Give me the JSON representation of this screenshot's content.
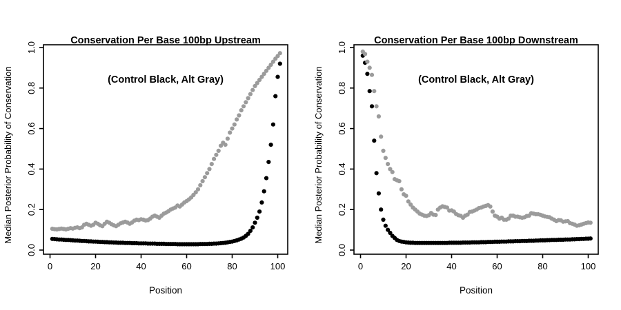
{
  "page": {
    "background": "#ffffff",
    "text_color": "#000000"
  },
  "chart_data": [
    {
      "type": "scatter",
      "panel": "upstream",
      "title_line1": "Conservation Per Base 100bp Upstream",
      "title_line2": "(Control Black, Alt Gray)",
      "xlabel": "Position",
      "ylabel": "Median Posterior Probability of Conservation",
      "xlim": [
        0,
        100
      ],
      "ylim": [
        0.0,
        1.0
      ],
      "x_ticks": [
        0,
        20,
        40,
        60,
        80,
        100
      ],
      "y_ticks": [
        "0.0",
        "0.2",
        "0.4",
        "0.6",
        "0.8",
        "1.0"
      ],
      "grid": false,
      "legend": "encoded in subtitle: Control = black, Alt = gray",
      "x_positions": {
        "start": 1,
        "step": 1,
        "count": 101
      },
      "series": [
        {
          "name": "Control",
          "color": "#000000",
          "values": [
            0.055,
            0.054,
            0.053,
            0.052,
            0.052,
            0.051,
            0.05,
            0.05,
            0.049,
            0.048,
            0.047,
            0.047,
            0.046,
            0.045,
            0.045,
            0.044,
            0.043,
            0.043,
            0.042,
            0.042,
            0.041,
            0.04,
            0.04,
            0.039,
            0.039,
            0.038,
            0.038,
            0.037,
            0.037,
            0.036,
            0.036,
            0.036,
            0.035,
            0.035,
            0.035,
            0.034,
            0.034,
            0.034,
            0.033,
            0.033,
            0.033,
            0.033,
            0.032,
            0.032,
            0.032,
            0.032,
            0.031,
            0.031,
            0.031,
            0.031,
            0.03,
            0.03,
            0.03,
            0.03,
            0.03,
            0.029,
            0.029,
            0.029,
            0.029,
            0.029,
            0.029,
            0.029,
            0.029,
            0.029,
            0.029,
            0.03,
            0.03,
            0.03,
            0.03,
            0.031,
            0.031,
            0.032,
            0.032,
            0.033,
            0.034,
            0.035,
            0.036,
            0.038,
            0.04,
            0.042,
            0.045,
            0.048,
            0.052,
            0.056,
            0.062,
            0.07,
            0.08,
            0.095,
            0.112,
            0.135,
            0.16,
            0.19,
            0.235,
            0.29,
            0.355,
            0.435,
            0.52,
            0.62,
            0.76,
            0.855,
            0.92
          ]
        },
        {
          "name": "Alt",
          "color": "#9b9b9b",
          "values": [
            0.105,
            0.103,
            0.102,
            0.104,
            0.106,
            0.104,
            0.102,
            0.105,
            0.108,
            0.106,
            0.11,
            0.112,
            0.108,
            0.112,
            0.125,
            0.13,
            0.125,
            0.12,
            0.125,
            0.135,
            0.13,
            0.122,
            0.118,
            0.13,
            0.14,
            0.135,
            0.128,
            0.122,
            0.118,
            0.125,
            0.132,
            0.136,
            0.14,
            0.136,
            0.13,
            0.136,
            0.145,
            0.15,
            0.148,
            0.152,
            0.15,
            0.146,
            0.148,
            0.155,
            0.165,
            0.17,
            0.165,
            0.16,
            0.17,
            0.18,
            0.185,
            0.192,
            0.2,
            0.205,
            0.21,
            0.22,
            0.215,
            0.225,
            0.235,
            0.242,
            0.25,
            0.26,
            0.272,
            0.285,
            0.3,
            0.32,
            0.34,
            0.36,
            0.38,
            0.4,
            0.425,
            0.45,
            0.47,
            0.49,
            0.515,
            0.53,
            0.52,
            0.55,
            0.58,
            0.6,
            0.62,
            0.645,
            0.665,
            0.69,
            0.71,
            0.73,
            0.75,
            0.77,
            0.79,
            0.81,
            0.825,
            0.84,
            0.855,
            0.87,
            0.885,
            0.9,
            0.915,
            0.93,
            0.945,
            0.958,
            0.972
          ]
        }
      ]
    },
    {
      "type": "scatter",
      "panel": "downstream",
      "title_line1": "Conservation Per Base 100bp Downstream",
      "title_line2": "(Control Black, Alt Gray)",
      "xlabel": "Position",
      "ylabel": "Median Posterior Probability of Conservation",
      "xlim": [
        0,
        100
      ],
      "ylim": [
        0.0,
        1.0
      ],
      "x_ticks": [
        0,
        20,
        40,
        60,
        80,
        100
      ],
      "y_ticks": [
        "0.0",
        "0.2",
        "0.4",
        "0.6",
        "0.8",
        "1.0"
      ],
      "grid": false,
      "legend": "encoded in subtitle: Control = black, Alt = gray",
      "x_positions": {
        "start": 1,
        "step": 1,
        "count": 101
      },
      "series": [
        {
          "name": "Control",
          "color": "#000000",
          "values": [
            0.96,
            0.925,
            0.87,
            0.785,
            0.71,
            0.54,
            0.38,
            0.28,
            0.2,
            0.15,
            0.12,
            0.1,
            0.085,
            0.07,
            0.06,
            0.05,
            0.045,
            0.042,
            0.04,
            0.038,
            0.037,
            0.036,
            0.036,
            0.035,
            0.035,
            0.035,
            0.035,
            0.035,
            0.035,
            0.035,
            0.035,
            0.035,
            0.035,
            0.035,
            0.035,
            0.035,
            0.035,
            0.035,
            0.036,
            0.036,
            0.036,
            0.036,
            0.036,
            0.036,
            0.037,
            0.037,
            0.037,
            0.037,
            0.038,
            0.038,
            0.038,
            0.038,
            0.039,
            0.039,
            0.039,
            0.04,
            0.04,
            0.04,
            0.041,
            0.041,
            0.041,
            0.042,
            0.042,
            0.042,
            0.043,
            0.043,
            0.043,
            0.044,
            0.044,
            0.044,
            0.045,
            0.045,
            0.045,
            0.046,
            0.046,
            0.046,
            0.047,
            0.047,
            0.048,
            0.048,
            0.048,
            0.049,
            0.049,
            0.05,
            0.05,
            0.05,
            0.051,
            0.051,
            0.051,
            0.052,
            0.052,
            0.052,
            0.053,
            0.053,
            0.054,
            0.054,
            0.055,
            0.055,
            0.056,
            0.056,
            0.057
          ]
        },
        {
          "name": "Alt",
          "color": "#9b9b9b",
          "values": [
            0.98,
            0.968,
            0.93,
            0.9,
            0.865,
            0.785,
            0.71,
            0.66,
            0.56,
            0.49,
            0.455,
            0.425,
            0.4,
            0.385,
            0.35,
            0.345,
            0.34,
            0.3,
            0.275,
            0.268,
            0.24,
            0.225,
            0.21,
            0.2,
            0.19,
            0.18,
            0.175,
            0.17,
            0.168,
            0.172,
            0.183,
            0.175,
            0.173,
            0.2,
            0.21,
            0.216,
            0.213,
            0.21,
            0.195,
            0.196,
            0.19,
            0.178,
            0.172,
            0.169,
            0.16,
            0.17,
            0.175,
            0.188,
            0.19,
            0.195,
            0.2,
            0.207,
            0.21,
            0.215,
            0.218,
            0.222,
            0.215,
            0.19,
            0.17,
            0.165,
            0.155,
            0.16,
            0.15,
            0.15,
            0.155,
            0.17,
            0.17,
            0.165,
            0.165,
            0.162,
            0.16,
            0.162,
            0.168,
            0.17,
            0.182,
            0.18,
            0.177,
            0.177,
            0.174,
            0.17,
            0.166,
            0.164,
            0.162,
            0.155,
            0.15,
            0.143,
            0.148,
            0.147,
            0.14,
            0.142,
            0.143,
            0.133,
            0.13,
            0.126,
            0.12,
            0.122,
            0.126,
            0.13,
            0.133,
            0.136,
            0.135
          ]
        }
      ]
    }
  ]
}
